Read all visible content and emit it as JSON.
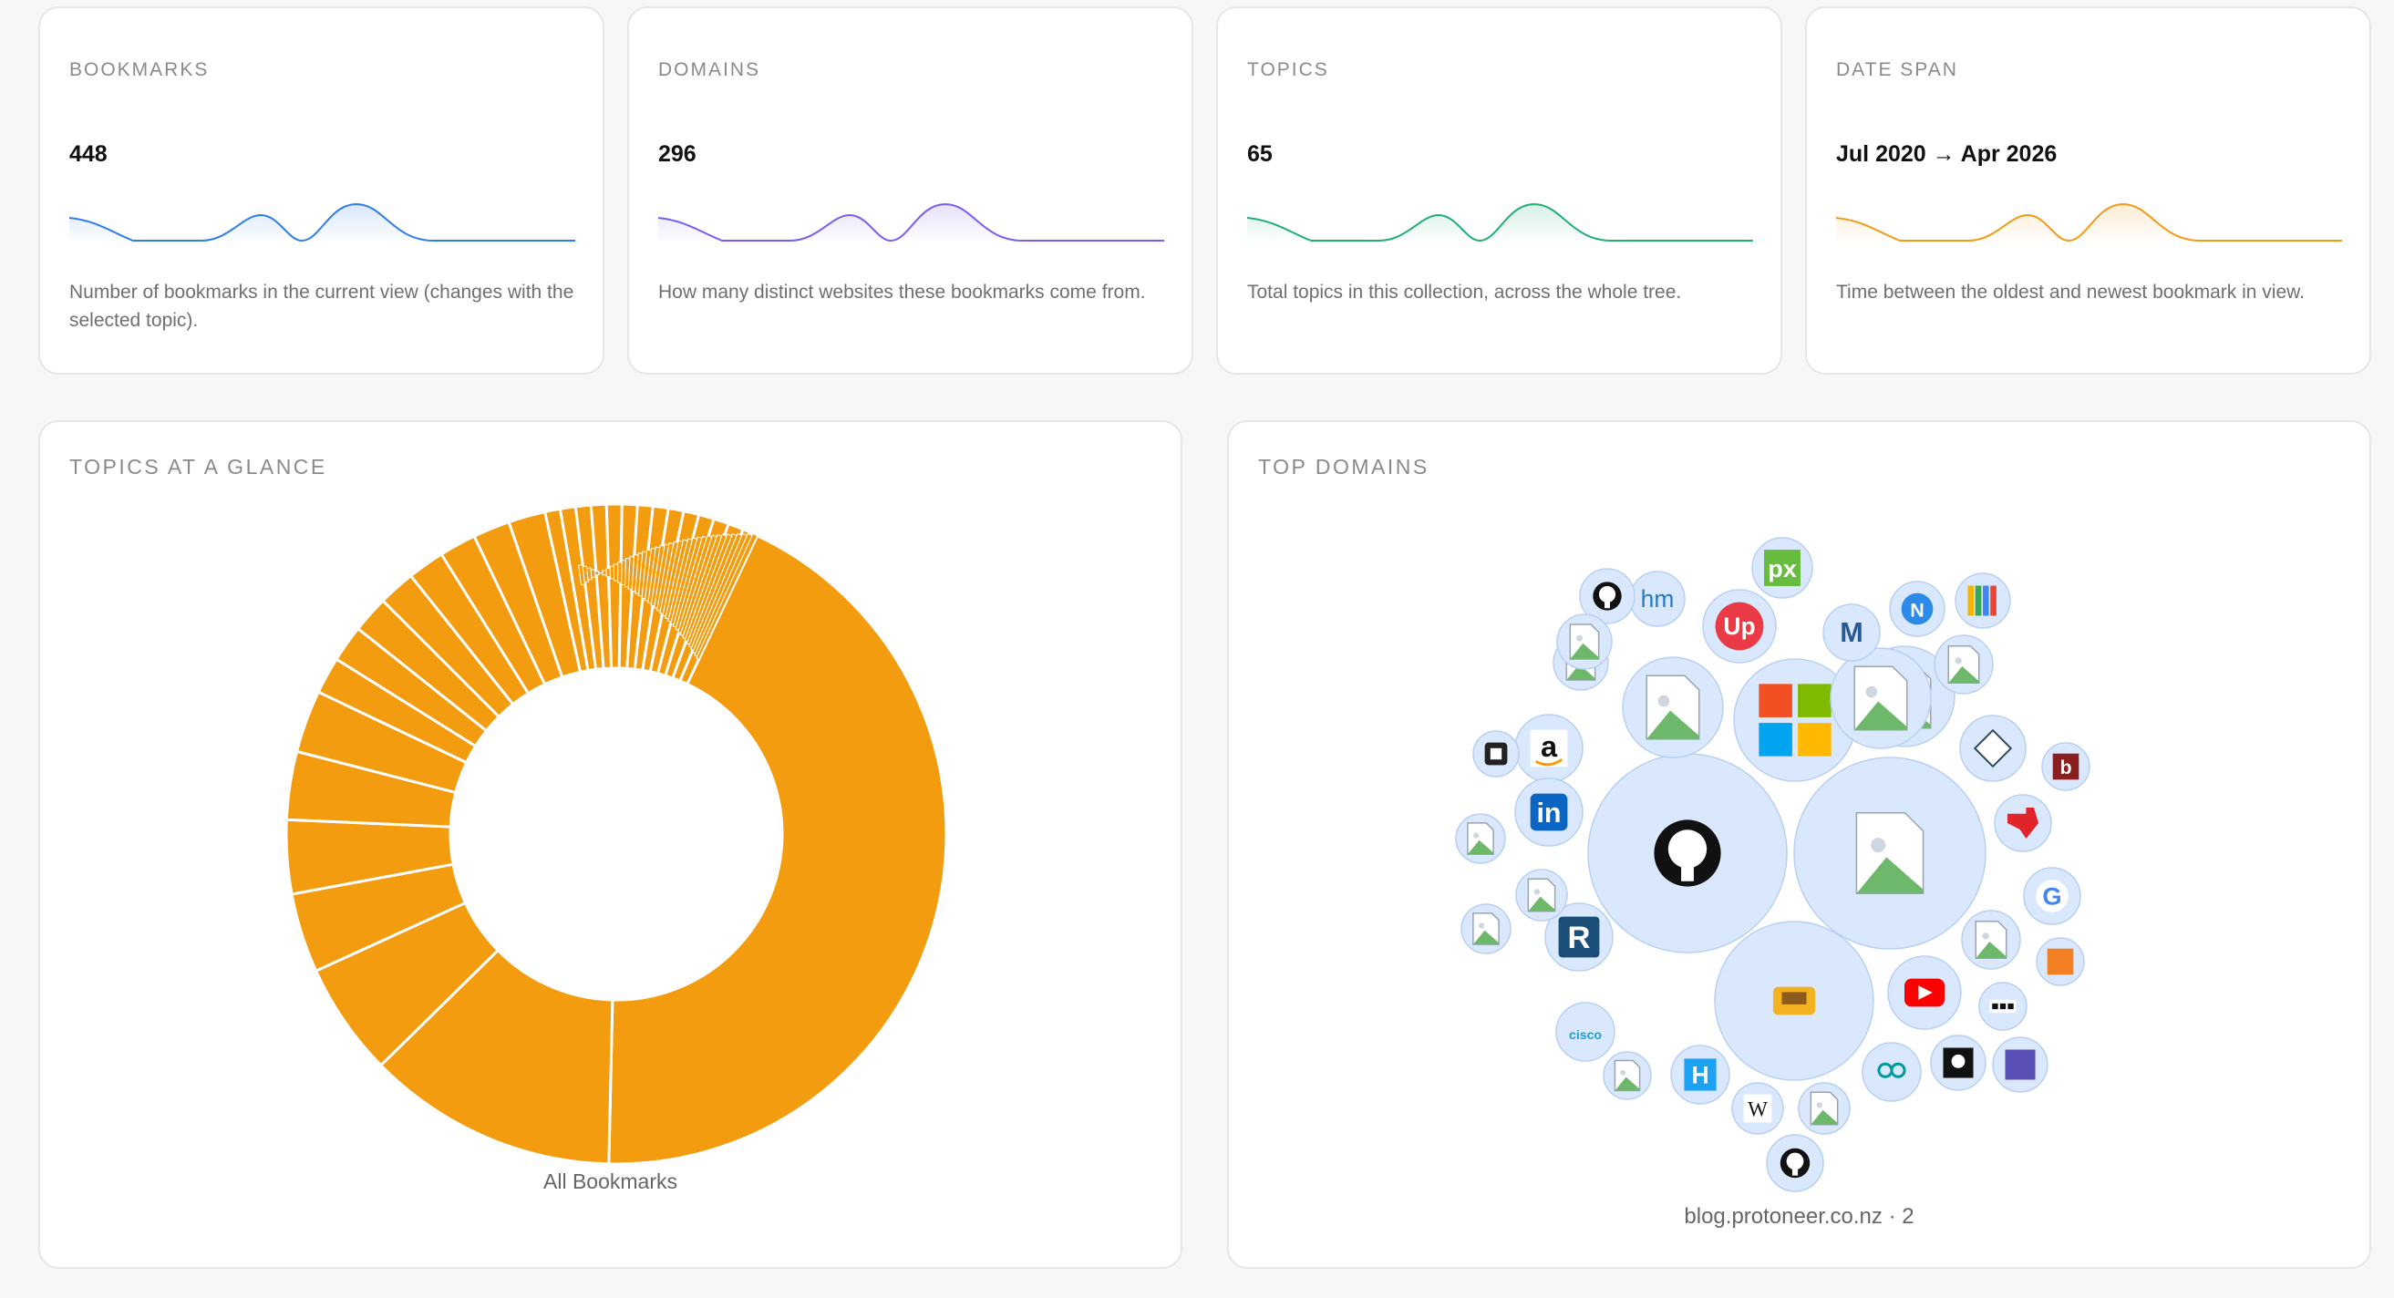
{
  "stats": [
    {
      "label": "BOOKMARKS",
      "value": "448",
      "description": "Number of bookmarks in the current view (changes with the selected topic).",
      "color": "#2f7de8"
    },
    {
      "label": "DOMAINS",
      "value": "296",
      "description": "How many distinct websites these bookmarks come from.",
      "color": "#7b5cf0"
    },
    {
      "label": "TOPICS",
      "value": "65",
      "description": "Total topics in this collection, across the whole tree.",
      "color": "#1fae74"
    },
    {
      "label": "DATE SPAN",
      "value": "Jul 2020 → Apr 2026",
      "description": "Time between the oldest and newest bookmark in view.",
      "color": "#f29b16"
    }
  ],
  "topics_panel": {
    "title": "TOPICS AT A GLANCE",
    "caption": "All Bookmarks",
    "color": "#f39c0f"
  },
  "domains_panel": {
    "title": "TOP DOMAINS",
    "caption": "blog.protoneer.co.nz · 2",
    "bubble_fill": "#d9e8fc",
    "bubble_stroke": "#b9d0f2"
  },
  "bubbles": [
    {
      "icon": "github-icon"
    },
    {
      "icon": "image-placeholder-icon"
    },
    {
      "icon": "cnc-mascot-icon"
    },
    {
      "icon": "microsoft-icon"
    },
    {
      "icon": "image-placeholder-icon"
    },
    {
      "icon": "image-placeholder-icon"
    },
    {
      "icon": "image-placeholder-icon"
    },
    {
      "icon": "youtube-icon"
    },
    {
      "icon": "up-icon"
    },
    {
      "icon": "amazon-icon"
    },
    {
      "icon": "linkedin-icon"
    },
    {
      "icon": "r-logo-icon"
    },
    {
      "icon": "px-icon"
    },
    {
      "icon": "elm-icon"
    },
    {
      "icon": "image-placeholder-icon"
    },
    {
      "icon": "image-placeholder-icon"
    },
    {
      "icon": "google-icon"
    },
    {
      "icon": "hackaday-icon"
    },
    {
      "icon": "m-logo-icon"
    },
    {
      "icon": "n-logo-icon"
    },
    {
      "icon": "arduino-icon"
    },
    {
      "icon": "cisco-icon"
    },
    {
      "icon": "texas-instruments-icon"
    },
    {
      "icon": "github-icon"
    },
    {
      "icon": "hm-logo-icon"
    },
    {
      "icon": "image-placeholder-icon"
    },
    {
      "icon": "image-placeholder-icon"
    },
    {
      "icon": "pirate-flag-icon"
    },
    {
      "icon": "wikipedia-icon"
    },
    {
      "icon": "bars-logo-icon"
    },
    {
      "icon": "pimoroni-icon"
    },
    {
      "icon": "github-icon"
    },
    {
      "icon": "b-logo-icon"
    },
    {
      "icon": "stackoverflow-icon"
    },
    {
      "icon": "dots-logo-icon"
    },
    {
      "icon": "image-placeholder-icon"
    },
    {
      "icon": "image-placeholder-icon"
    },
    {
      "icon": "image-placeholder-icon"
    },
    {
      "icon": "image-placeholder-icon"
    },
    {
      "icon": "chip-icon"
    },
    {
      "icon": "image-placeholder-icon"
    }
  ]
}
